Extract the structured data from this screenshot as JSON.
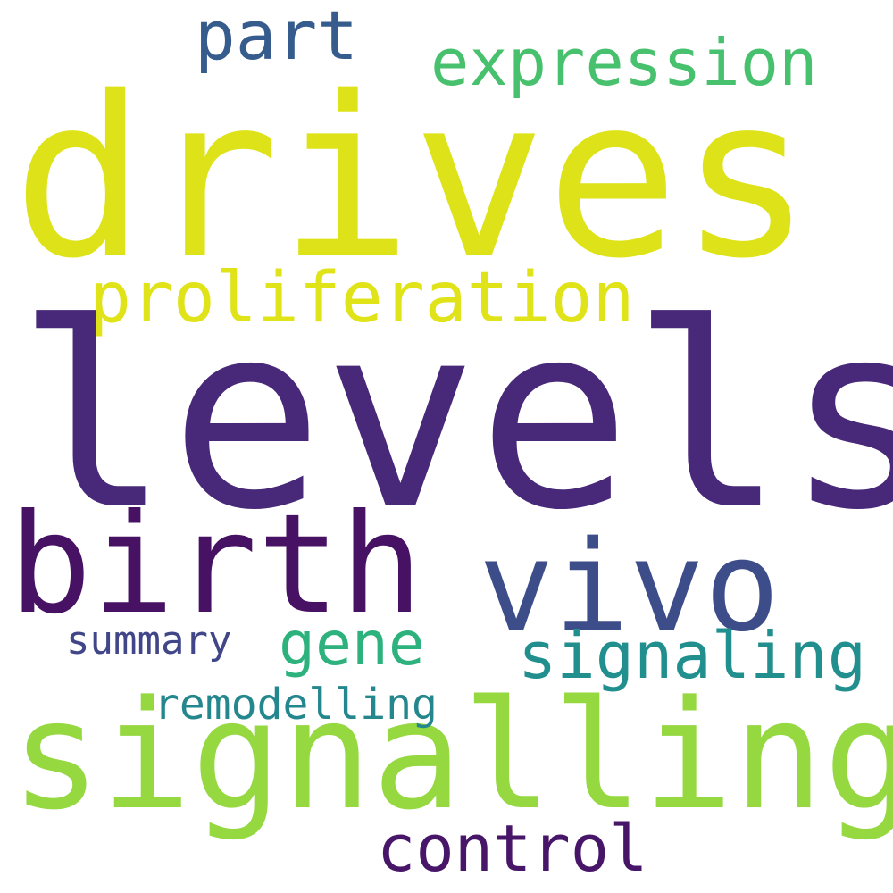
{
  "words": [
    {
      "key": "drives",
      "text": "drives",
      "color": "#dde318"
    },
    {
      "key": "levels",
      "text": "levels",
      "color": "#482878"
    },
    {
      "key": "birth",
      "text": "birth",
      "color": "#471164"
    },
    {
      "key": "vivo",
      "text": "vivo",
      "color": "#3d4d8a"
    },
    {
      "key": "signalling",
      "text": "signalling",
      "color": "#95d840"
    },
    {
      "key": "proliferation",
      "text": "proliferation",
      "color": "#dfe318"
    },
    {
      "key": "part",
      "text": "part",
      "color": "#365c8d"
    },
    {
      "key": "expression",
      "text": "expression",
      "color": "#48c16e"
    },
    {
      "key": "gene",
      "text": "gene",
      "color": "#2db27d"
    },
    {
      "key": "signaling",
      "text": "signaling",
      "color": "#218f8d"
    },
    {
      "key": "summary",
      "text": "summary",
      "color": "#404688"
    },
    {
      "key": "remodelling",
      "text": "remodelling",
      "color": "#24878e"
    },
    {
      "key": "control",
      "text": "control",
      "color": "#481668"
    }
  ],
  "background_color": "#ffffff"
}
